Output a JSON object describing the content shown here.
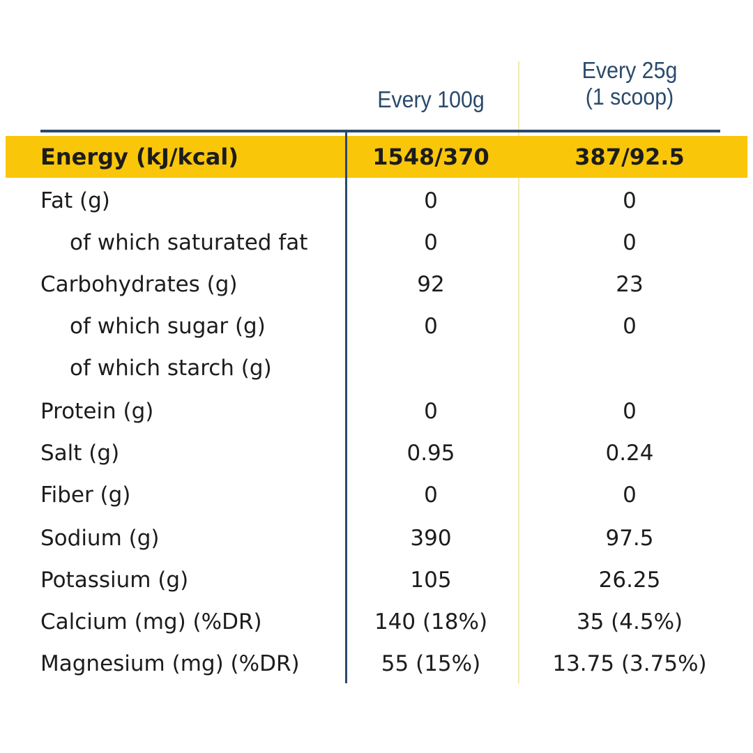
{
  "headers": {
    "col1": "Every 100g",
    "col2_line1": "Every 25g",
    "col2_line2": "(1 scoop)"
  },
  "colors": {
    "highlight": "#f9c60a",
    "rule": "#2a4a6b",
    "header_text": "#2a4a6b"
  },
  "rows": [
    {
      "label": "Energy (kJ/kcal)",
      "per100": "1548/370",
      "perScoop": "387/92.5"
    },
    {
      "label": "Fat (g)",
      "per100": "0",
      "perScoop": "0"
    },
    {
      "label": "of which saturated fat",
      "per100": "0",
      "perScoop": "0"
    },
    {
      "label": "Carbohydrates (g)",
      "per100": "92",
      "perScoop": "23"
    },
    {
      "label": "of which sugar (g)",
      "per100": "0",
      "perScoop": "0"
    },
    {
      "label": "of which starch (g)",
      "per100": "",
      "perScoop": ""
    },
    {
      "label": "Protein (g)",
      "per100": "0",
      "perScoop": "0"
    },
    {
      "label": "Salt (g)",
      "per100": "0.95",
      "perScoop": "0.24"
    },
    {
      "label": "Fiber (g)",
      "per100": "0",
      "perScoop": "0"
    },
    {
      "label": "Sodium (g)",
      "per100": "390",
      "perScoop": "97.5"
    },
    {
      "label": "Potassium (g)",
      "per100": "105",
      "perScoop": "26.25"
    },
    {
      "label": "Calcium (mg) (%DR)",
      "per100": "140 (18%)",
      "perScoop": "35 (4.5%)"
    },
    {
      "label": "Magnesium (mg) (%DR)",
      "per100": "55 (15%)",
      "perScoop": "13.75 (3.75%)"
    }
  ]
}
